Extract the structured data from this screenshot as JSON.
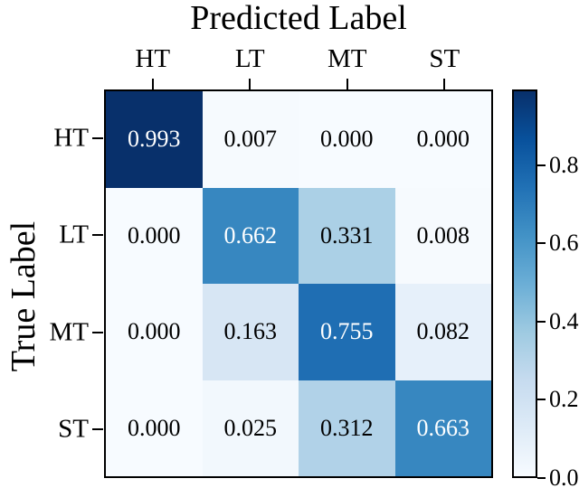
{
  "chart_data": {
    "type": "heatmap",
    "title": "Predicted Label",
    "xlabel": "Predicted Label",
    "ylabel": "True Label",
    "xlabel_position": "top",
    "colormap": "Blues",
    "x_categories": [
      "HT",
      "LT",
      "MT",
      "ST"
    ],
    "y_categories": [
      "HT",
      "LT",
      "MT",
      "ST"
    ],
    "matrix": [
      [
        0.993,
        0.007,
        0.0,
        0.0
      ],
      [
        0.0,
        0.662,
        0.331,
        0.008
      ],
      [
        0.0,
        0.163,
        0.755,
        0.082
      ],
      [
        0.0,
        0.025,
        0.312,
        0.663
      ]
    ],
    "cell_labels": [
      [
        "0.993",
        "0.007",
        "0.000",
        "0.000"
      ],
      [
        "0.000",
        "0.662",
        "0.331",
        "0.008"
      ],
      [
        "0.000",
        "0.163",
        "0.755",
        "0.082"
      ],
      [
        "0.000",
        "0.025",
        "0.312",
        "0.663"
      ]
    ],
    "cell_colors": [
      [
        "#08306b",
        "#f6fafe",
        "#f7fbff",
        "#f7fbff"
      ],
      [
        "#f7fbff",
        "#3787c0",
        "#abd0e6",
        "#f6fafe"
      ],
      [
        "#f7fbff",
        "#d7e6f4",
        "#1f6eb3",
        "#e6f0fa"
      ],
      [
        "#f7fbff",
        "#f2f8fd",
        "#b1d2e8",
        "#3787c0"
      ]
    ],
    "cell_text_colors": [
      [
        "#ffffff",
        "#000000",
        "#000000",
        "#000000"
      ],
      [
        "#000000",
        "#ffffff",
        "#000000",
        "#000000"
      ],
      [
        "#000000",
        "#000000",
        "#ffffff",
        "#000000"
      ],
      [
        "#000000",
        "#000000",
        "#000000",
        "#ffffff"
      ]
    ],
    "vmin": 0.0,
    "vmax": 0.993,
    "colorbar": {
      "tick_values": [
        0.8,
        0.6,
        0.4,
        0.2,
        0.0
      ],
      "tick_labels": [
        "0.8",
        "0.6",
        "0.4",
        "0.2",
        "0.0"
      ],
      "gradient_stops": [
        "#f7fbff",
        "#deebf7",
        "#c6dbef",
        "#9ecae1",
        "#6baed6",
        "#4292c6",
        "#2171b5",
        "#08519c",
        "#08306b"
      ]
    },
    "grid": false,
    "legend": "colorbar-right"
  },
  "colors": {
    "background": "#ffffff",
    "border": "#000000",
    "text": "#000000"
  }
}
